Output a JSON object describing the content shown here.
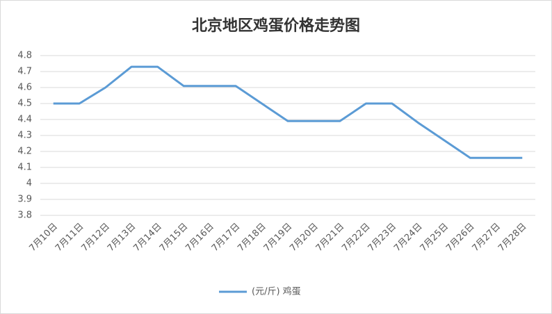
{
  "chart_data": {
    "type": "line",
    "title": "北京地区鸡蛋价格走势图",
    "categories": [
      "7月10日",
      "7月11日",
      "7月12日",
      "7月13日",
      "7月14日",
      "7月15日",
      "7月16日",
      "7月17日",
      "7月18日",
      "7月19日",
      "7月20日",
      "7月21日",
      "7月22日",
      "7月23日",
      "7月24日",
      "7月25日",
      "7月26日",
      "7月27日",
      "7月28日"
    ],
    "series": [
      {
        "name": "(元/斤) 鸡蛋",
        "color": "#5b9bd5",
        "values": [
          4.5,
          4.5,
          4.6,
          4.73,
          4.73,
          4.61,
          4.61,
          4.61,
          4.5,
          4.39,
          4.39,
          4.39,
          4.5,
          4.5,
          4.38,
          4.27,
          4.16,
          4.16,
          4.16
        ]
      }
    ],
    "ylim": [
      3.8,
      4.8
    ],
    "yticks": [
      3.8,
      3.9,
      4,
      4.1,
      4.2,
      4.3,
      4.4,
      4.5,
      4.6,
      4.7,
      4.8
    ],
    "grid": true,
    "legend": "bottom"
  }
}
